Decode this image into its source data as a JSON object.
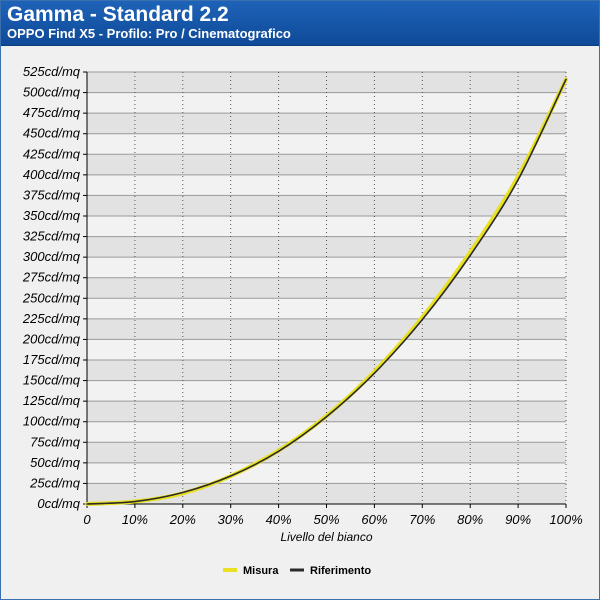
{
  "header": {
    "title": "Gamma - Standard 2.2",
    "subtitle": "OPPO Find X5 - Profilo: Pro / Cinematografico"
  },
  "colors": {
    "header_bg": "#1650a8",
    "plot_band_dark": "#e2e2e2",
    "plot_band_light": "#f2f2f2",
    "measure": "#e8e020",
    "reference": "#2a2a2a"
  },
  "chart_data": {
    "type": "line",
    "title": "Gamma - Standard 2.2",
    "subtitle": "OPPO Find X5 - Profilo: Pro / Cinematografico",
    "xlabel": "Livello del bianco",
    "ylabel": "",
    "x": [
      0,
      10,
      20,
      30,
      40,
      50,
      60,
      70,
      80,
      90,
      100
    ],
    "x_tick_labels": [
      "0",
      "10%",
      "20%",
      "30%",
      "40%",
      "50%",
      "60%",
      "70%",
      "80%",
      "90%",
      "100%"
    ],
    "y_ticks": [
      0,
      25,
      50,
      75,
      100,
      125,
      150,
      175,
      200,
      225,
      250,
      275,
      300,
      325,
      350,
      375,
      400,
      425,
      450,
      475,
      500,
      525
    ],
    "y_tick_labels": [
      "0cd/mq",
      "25cd/mq",
      "50cd/mq",
      "75cd/mq",
      "100cd/mq",
      "125cd/mq",
      "150cd/mq",
      "175cd/mq",
      "200cd/mq",
      "225cd/mq",
      "250cd/mq",
      "275cd/mq",
      "300cd/mq",
      "325cd/mq",
      "350cd/mq",
      "375cd/mq",
      "400cd/mq",
      "425cd/mq",
      "450cd/mq",
      "475cd/mq",
      "500cd/mq",
      "525cd/mq"
    ],
    "ylim": [
      0,
      525
    ],
    "xlim": [
      0,
      100
    ],
    "grid": true,
    "legend_position": "bottom-center",
    "series": [
      {
        "name": "Misura",
        "color": "#e8e020",
        "values": [
          0,
          3,
          13,
          34,
          65,
          107,
          161,
          227,
          306,
          398,
          516
        ]
      },
      {
        "name": "Riferimento",
        "color": "#2a2a2a",
        "values": [
          0,
          3,
          14,
          34,
          64,
          106,
          159,
          224,
          302,
          394,
          516
        ]
      }
    ]
  }
}
